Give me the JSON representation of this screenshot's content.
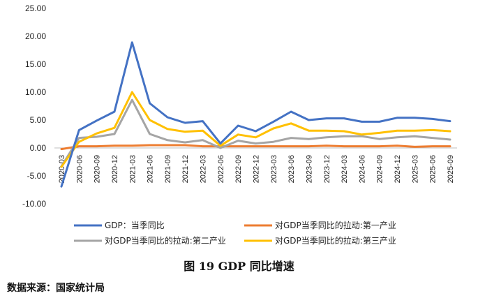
{
  "chart_data": {
    "type": "line",
    "title": "图 19 GDP 同比增速",
    "source": "数据来源：国家统计局",
    "ylim": [
      -10,
      25
    ],
    "yticks": [
      "-10.00",
      "-5.00",
      "0.00",
      "5.00",
      "10.00",
      "15.00",
      "20.00",
      "25.00"
    ],
    "ytick_values": [
      -10,
      -5,
      0,
      5,
      10,
      15,
      20,
      25
    ],
    "categories": [
      "2020-03",
      "2020-06",
      "2020-09",
      "2020-12",
      "2021-03",
      "2021-06",
      "2021-09",
      "2021-12",
      "2022-03",
      "2022-06",
      "2022-09",
      "2022-12",
      "2023-03",
      "2023-06",
      "2023-09",
      "2023-12",
      "2024-03",
      "2024-06",
      "2024-09",
      "2024-12",
      "2025-03",
      "2025-06",
      "2025-09"
    ],
    "series": [
      {
        "name": "GDP：当季同比",
        "color": "#4472C4",
        "values": [
          -6.9,
          3.2,
          4.9,
          6.5,
          18.9,
          8.0,
          5.5,
          4.5,
          4.8,
          0.8,
          4.0,
          3.0,
          4.7,
          6.5,
          5.0,
          5.3,
          5.3,
          4.7,
          4.7,
          5.4,
          5.4,
          5.2,
          4.8
        ]
      },
      {
        "name": "对GDP当季同比的拉动:第一产业",
        "color": "#ED7D31",
        "values": [
          -0.2,
          0.3,
          0.3,
          0.4,
          0.4,
          0.5,
          0.5,
          0.5,
          0.3,
          0.3,
          0.3,
          0.3,
          0.3,
          0.3,
          0.3,
          0.4,
          0.3,
          0.3,
          0.3,
          0.4,
          0.2,
          0.3,
          0.3
        ]
      },
      {
        "name": "对GDP当季同比的拉动:第二产业",
        "color": "#A5A5A5",
        "values": [
          -3.3,
          1.8,
          2.0,
          2.5,
          8.6,
          2.5,
          1.4,
          1.0,
          1.4,
          0.0,
          1.3,
          0.8,
          1.1,
          1.8,
          1.6,
          1.9,
          2.1,
          2.1,
          1.6,
          1.9,
          2.1,
          1.8,
          1.5
        ]
      },
      {
        "name": "对GDP当季同比的拉动:第三产业",
        "color": "#FFC000",
        "values": [
          -3.4,
          1.1,
          2.6,
          3.6,
          10.0,
          5.0,
          3.4,
          2.9,
          3.1,
          0.4,
          2.4,
          1.9,
          3.5,
          4.4,
          3.1,
          3.1,
          3.0,
          2.4,
          2.7,
          3.1,
          3.1,
          3.2,
          3.0
        ]
      }
    ]
  }
}
